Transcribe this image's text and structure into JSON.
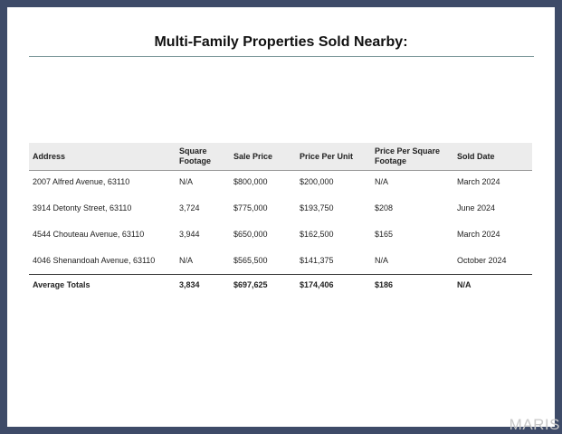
{
  "title": "Multi-Family Properties Sold Nearby:",
  "table": {
    "headers": [
      "Address",
      "Square Footage",
      "Sale Price",
      "Price Per Unit",
      "Price Per Square Footage",
      "Sold Date"
    ],
    "rows": [
      [
        "2007 Alfred Avenue, 63110",
        "N/A",
        "$800,000",
        "$200,000",
        "N/A",
        "March 2024"
      ],
      [
        "3914 Detonty Street, 63110",
        "3,724",
        "$775,000",
        "$193,750",
        "$208",
        "June 2024"
      ],
      [
        "4544 Chouteau Avenue, 63110",
        "3,944",
        "$650,000",
        "$162,500",
        "$165",
        "March 2024"
      ],
      [
        "4046 Shenandoah Avenue, 63110",
        "N/A",
        "$565,500",
        "$141,375",
        "N/A",
        "October 2024"
      ]
    ],
    "totals": [
      "Average Totals",
      "3,834",
      "$697,625",
      "$174,406",
      "$186",
      "N/A"
    ]
  },
  "watermark": "MARIS"
}
